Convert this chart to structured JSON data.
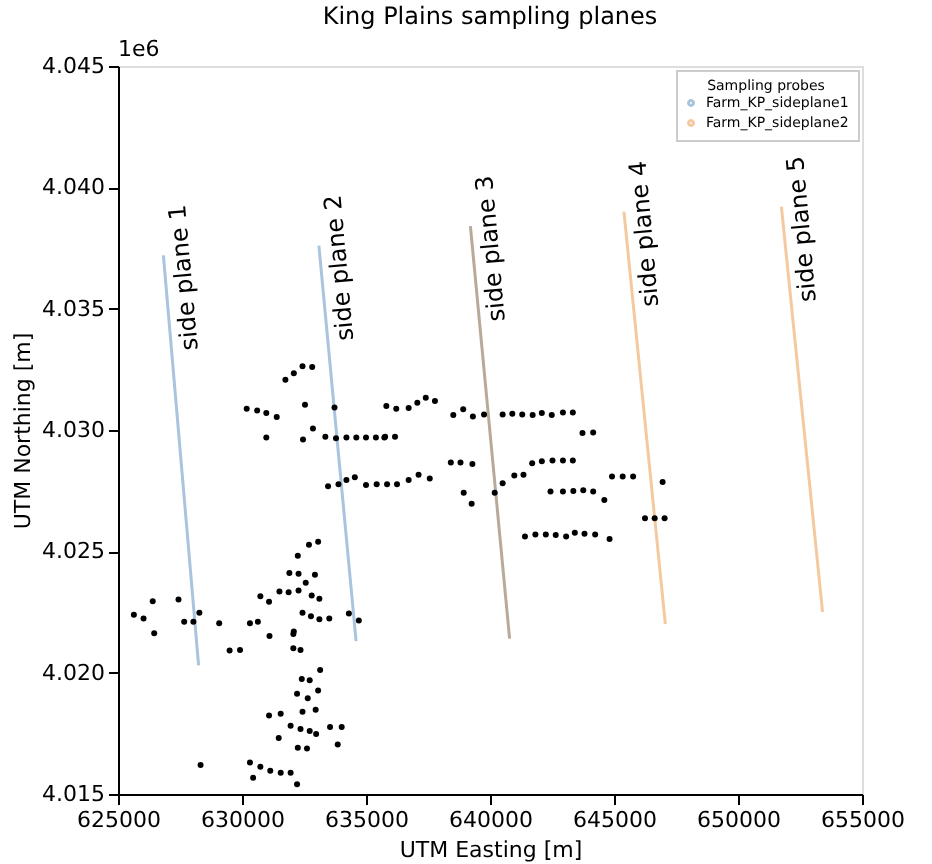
{
  "chart_data": {
    "type": "scatter",
    "title": "King Plains sampling planes",
    "xlabel": "UTM Easting [m]",
    "ylabel": "UTM Northing [m]",
    "legend_title": "Sampling probes",
    "legend": "top right",
    "grid": false,
    "marker": "circle",
    "xlim": [
      625000,
      655000
    ],
    "xticks": [
      625000,
      630000,
      635000,
      640000,
      645000,
      650000,
      655000
    ],
    "ylim": [
      4.015,
      4.045
    ],
    "yticks": [
      {
        "value": 4.015,
        "label": "4.015"
      },
      {
        "value": 4.02,
        "label": "4.020"
      },
      {
        "value": 4.025,
        "label": "4.025"
      },
      {
        "value": 4.03,
        "label": "4.030"
      },
      {
        "value": 4.035,
        "label": "4.035"
      },
      {
        "value": 4.04,
        "label": "4.040"
      },
      {
        "value": 4.045,
        "label": "4.045"
      }
    ],
    "series": [
      {
        "type": "line",
        "marker": "none",
        "name": "Farm_KP_sideplane1",
        "color": "#a9c4dc",
        "x": [
          626830,
          628250
        ],
        "values": [
          4.0372,
          4.0203
        ]
      },
      {
        "type": "line",
        "marker": "none",
        "color": "#a9c4dc",
        "x": [
          633100,
          634600
        ],
        "values": [
          4.0376,
          4.0213
        ]
      },
      {
        "type": "line",
        "marker": "none",
        "color": "#b9a999",
        "x": [
          639210,
          640790
        ],
        "values": [
          4.0384,
          4.0214
        ]
      },
      {
        "type": "line",
        "marker": "none",
        "name": "Farm_KP_sideplane2",
        "color": "#f5c9a0",
        "x": [
          645400,
          647070
        ],
        "values": [
          4.039,
          4.022
        ]
      },
      {
        "type": "line",
        "marker": "none",
        "color": "#f5c9a0",
        "x": [
          651750,
          653410
        ],
        "values": [
          4.0392,
          4.0225
        ]
      },
      {
        "color": "#000000",
        "x": [
          631750,
          632090,
          632440,
          632830,
          630190,
          630610,
          630980,
          631400,
          632540,
          633730,
          630980,
          632460,
          632860,
          633360,
          633790,
          634210,
          634610,
          635000,
          635400,
          635740,
          633470,
          633890,
          634210,
          634550,
          635000,
          635430,
          632700,
          633070,
          632250,
          631910,
          632280,
          632570,
          632940,
          631510,
          631880,
          632280,
          632810,
          633120,
          630740,
          631090,
          630320,
          630640,
          631110,
          632090,
          632440,
          632780,
          633120,
          633520,
          634310,
          634710,
          625640,
          626030,
          626400,
          626460,
          627440,
          627670,
          628040,
          628280,
          629080,
          629500,
          629920,
          632070,
          632360,
          632070,
          632410,
          632730,
          633150,
          632220,
          632650,
          633070,
          632970,
          632440,
          631090,
          631560,
          631960,
          632360,
          632730,
          632990,
          631480,
          632250,
          632620,
          633860,
          633550,
          634020,
          628330,
          630320,
          630450,
          630740,
          631140,
          631560,
          631960,
          632220,
          635820,
          636220,
          636720,
          637070,
          637410,
          637780,
          638520,
          638920,
          639310,
          639760,
          640510,
          640900,
          641300,
          641720,
          642090,
          642490,
          642940,
          643340,
          635770,
          636170,
          643730,
          644160,
          635850,
          636250,
          636720,
          637120,
          637570,
          638420,
          638810,
          639290,
          640510,
          640980,
          641350,
          641700,
          642090,
          642520,
          642940,
          643340,
          644920,
          645350,
          645770,
          646960,
          638940,
          639260,
          640190,
          642440,
          642940,
          643360,
          643760,
          644160,
          644610,
          646250,
          646640,
          647040,
          641410,
          641830,
          642250,
          642650,
          643070,
          643420,
          643810,
          644240,
          644820
        ],
        "values": [
          4.03207,
          4.03234,
          4.03263,
          4.0326,
          4.03088,
          4.0308,
          4.0307,
          4.03054,
          4.03104,
          4.03093,
          4.02969,
          4.02961,
          4.03006,
          4.02972,
          4.02966,
          4.02969,
          4.02969,
          4.02969,
          4.02969,
          4.02969,
          4.02768,
          4.02776,
          4.02794,
          4.02805,
          4.02773,
          4.02776,
          4.02527,
          4.0254,
          4.02482,
          4.02411,
          4.02408,
          4.02371,
          4.02403,
          4.02334,
          4.02331,
          4.02339,
          4.02318,
          4.02305,
          4.02315,
          4.02292,
          4.02204,
          4.0221,
          4.02151,
          4.0217,
          4.02247,
          4.02233,
          4.0222,
          4.02223,
          4.02244,
          4.02215,
          4.02239,
          4.02223,
          4.02294,
          4.02162,
          4.02302,
          4.0221,
          4.0221,
          4.02247,
          4.02204,
          4.02091,
          4.02093,
          4.02101,
          4.02093,
          4.02159,
          4.01974,
          4.01969,
          4.02011,
          4.01913,
          4.01895,
          4.01926,
          4.01847,
          4.01839,
          4.01823,
          4.01831,
          4.01781,
          4.01768,
          4.0176,
          4.01747,
          4.01731,
          4.01691,
          4.01688,
          4.01704,
          4.01776,
          4.01776,
          4.0162,
          4.0163,
          4.01567,
          4.01612,
          4.01596,
          4.01588,
          4.01588,
          4.0154,
          4.03099,
          4.03088,
          4.03091,
          4.03112,
          4.03133,
          4.0312,
          4.03062,
          4.03085,
          4.03056,
          4.03064,
          4.03064,
          4.03067,
          4.03064,
          4.03062,
          4.0307,
          4.03062,
          4.03072,
          4.03072,
          4.02972,
          4.02972,
          4.02988,
          4.0299,
          4.02776,
          4.02776,
          4.02794,
          4.02816,
          4.028,
          4.02866,
          4.02866,
          4.0286,
          4.02781,
          4.02813,
          4.02816,
          4.02863,
          4.02871,
          4.02874,
          4.02874,
          4.02874,
          4.02808,
          4.02808,
          4.02808,
          4.02786,
          4.02741,
          4.02696,
          4.02741,
          4.02747,
          4.02747,
          4.02749,
          4.02752,
          4.02747,
          4.02712,
          4.02636,
          4.02636,
          4.02636,
          4.02561,
          4.02569,
          4.02569,
          4.02567,
          4.02561,
          4.02577,
          4.02572,
          4.02569,
          4.02551
        ]
      }
    ],
    "annotations": [
      "1e6",
      "side plane 1",
      "side plane 2",
      "side plane 3",
      "side plane 4",
      "side plane 5"
    ]
  }
}
